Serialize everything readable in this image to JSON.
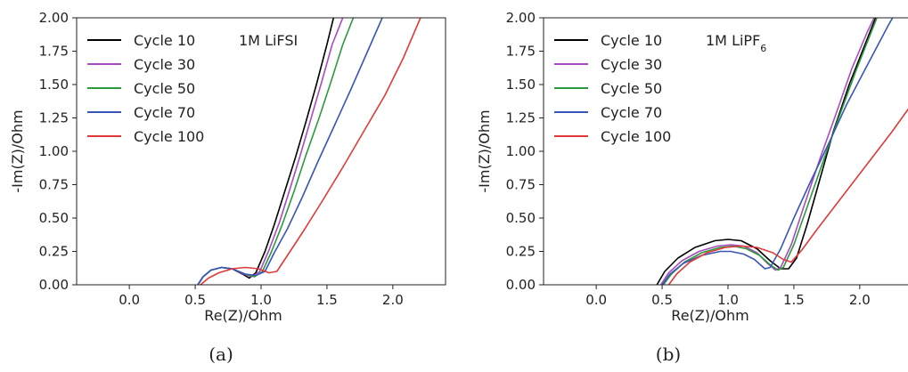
{
  "chart_data": [
    {
      "type": "line",
      "panel_label": "(a)",
      "annotation": "1M LiFSI",
      "xlabel": "Re(Z)/Ohm",
      "ylabel": "-Im(Z)/Ohm",
      "xlim": [
        -0.4,
        2.4
      ],
      "ylim": [
        0,
        2.0
      ],
      "xticks": [
        "0.0",
        "0.5",
        "1.0",
        "1.5",
        "2.0"
      ],
      "yticks": [
        "0.00",
        "0.25",
        "0.50",
        "0.75",
        "1.00",
        "1.25",
        "1.50",
        "1.75",
        "2.00"
      ],
      "legend": "top-left",
      "grid": false,
      "series": [
        {
          "name": "Cycle 10",
          "color": "#000000",
          "points": [
            [
              0.52,
              0.0
            ],
            [
              0.56,
              0.06
            ],
            [
              0.62,
              0.11
            ],
            [
              0.7,
              0.13
            ],
            [
              0.78,
              0.12
            ],
            [
              0.86,
              0.08
            ],
            [
              0.91,
              0.05
            ],
            [
              0.96,
              0.09
            ],
            [
              1.03,
              0.25
            ],
            [
              1.1,
              0.45
            ],
            [
              1.18,
              0.7
            ],
            [
              1.26,
              0.95
            ],
            [
              1.34,
              1.22
            ],
            [
              1.42,
              1.5
            ],
            [
              1.5,
              1.8
            ],
            [
              1.55,
              2.0
            ]
          ]
        },
        {
          "name": "Cycle 30",
          "color": "#a94bc0",
          "points": [
            [
              0.52,
              0.0
            ],
            [
              0.56,
              0.06
            ],
            [
              0.62,
              0.11
            ],
            [
              0.7,
              0.13
            ],
            [
              0.78,
              0.12
            ],
            [
              0.87,
              0.08
            ],
            [
              0.93,
              0.06
            ],
            [
              0.99,
              0.1
            ],
            [
              1.06,
              0.26
            ],
            [
              1.14,
              0.47
            ],
            [
              1.22,
              0.72
            ],
            [
              1.3,
              0.98
            ],
            [
              1.38,
              1.25
            ],
            [
              1.46,
              1.52
            ],
            [
              1.54,
              1.8
            ],
            [
              1.62,
              2.0
            ]
          ]
        },
        {
          "name": "Cycle 50",
          "color": "#2a9a3c",
          "points": [
            [
              0.52,
              0.0
            ],
            [
              0.56,
              0.06
            ],
            [
              0.62,
              0.11
            ],
            [
              0.7,
              0.13
            ],
            [
              0.78,
              0.12
            ],
            [
              0.88,
              0.08
            ],
            [
              0.95,
              0.06
            ],
            [
              1.01,
              0.1
            ],
            [
              1.08,
              0.25
            ],
            [
              1.16,
              0.45
            ],
            [
              1.25,
              0.7
            ],
            [
              1.34,
              0.97
            ],
            [
              1.44,
              1.25
            ],
            [
              1.53,
              1.52
            ],
            [
              1.62,
              1.8
            ],
            [
              1.7,
              2.0
            ]
          ]
        },
        {
          "name": "Cycle 70",
          "color": "#3a55b8",
          "points": [
            [
              0.52,
              0.0
            ],
            [
              0.56,
              0.06
            ],
            [
              0.62,
              0.11
            ],
            [
              0.7,
              0.13
            ],
            [
              0.78,
              0.12
            ],
            [
              0.88,
              0.08
            ],
            [
              0.96,
              0.07
            ],
            [
              1.03,
              0.1
            ],
            [
              1.1,
              0.24
            ],
            [
              1.2,
              0.42
            ],
            [
              1.31,
              0.65
            ],
            [
              1.43,
              0.92
            ],
            [
              1.56,
              1.2
            ],
            [
              1.68,
              1.46
            ],
            [
              1.8,
              1.73
            ],
            [
              1.92,
              2.0
            ]
          ]
        },
        {
          "name": "Cycle 100",
          "color": "#e03a3a",
          "points": [
            [
              0.54,
              0.0
            ],
            [
              0.6,
              0.05
            ],
            [
              0.68,
              0.09
            ],
            [
              0.78,
              0.12
            ],
            [
              0.88,
              0.13
            ],
            [
              0.98,
              0.12
            ],
            [
              1.06,
              0.09
            ],
            [
              1.12,
              0.1
            ],
            [
              1.2,
              0.22
            ],
            [
              1.32,
              0.4
            ],
            [
              1.46,
              0.62
            ],
            [
              1.62,
              0.88
            ],
            [
              1.78,
              1.15
            ],
            [
              1.94,
              1.42
            ],
            [
              2.08,
              1.7
            ],
            [
              2.21,
              2.0
            ]
          ]
        }
      ]
    },
    {
      "type": "line",
      "panel_label": "(b)",
      "annotation": "1M LiPF",
      "annotation_sub": "6",
      "xlabel": "Re(Z)/Ohm",
      "ylabel": "-Im(Z)/Ohm",
      "xlim": [
        -0.4,
        2.4
      ],
      "ylim": [
        0,
        2.0
      ],
      "xticks": [
        "0.0",
        "0.5",
        "1.0",
        "1.5",
        "2.0"
      ],
      "yticks": [
        "0.00",
        "0.25",
        "0.50",
        "0.75",
        "1.00",
        "1.25",
        "1.50",
        "1.75",
        "2.00"
      ],
      "legend": "top-left",
      "grid": false,
      "series": [
        {
          "name": "Cycle 10",
          "color": "#000000",
          "points": [
            [
              0.46,
              0.0
            ],
            [
              0.52,
              0.1
            ],
            [
              0.62,
              0.2
            ],
            [
              0.75,
              0.28
            ],
            [
              0.9,
              0.33
            ],
            [
              1.0,
              0.34
            ],
            [
              1.1,
              0.33
            ],
            [
              1.22,
              0.27
            ],
            [
              1.32,
              0.18
            ],
            [
              1.4,
              0.12
            ],
            [
              1.46,
              0.12
            ],
            [
              1.52,
              0.2
            ],
            [
              1.6,
              0.45
            ],
            [
              1.7,
              0.8
            ],
            [
              1.8,
              1.15
            ],
            [
              1.92,
              1.5
            ],
            [
              2.06,
              1.85
            ],
            [
              2.12,
              2.0
            ]
          ]
        },
        {
          "name": "Cycle 30",
          "color": "#a94bc0",
          "points": [
            [
              0.49,
              0.0
            ],
            [
              0.55,
              0.09
            ],
            [
              0.65,
              0.18
            ],
            [
              0.78,
              0.25
            ],
            [
              0.92,
              0.29
            ],
            [
              1.02,
              0.3
            ],
            [
              1.12,
              0.29
            ],
            [
              1.22,
              0.24
            ],
            [
              1.3,
              0.16
            ],
            [
              1.36,
              0.11
            ],
            [
              1.4,
              0.13
            ],
            [
              1.48,
              0.3
            ],
            [
              1.58,
              0.6
            ],
            [
              1.7,
              0.95
            ],
            [
              1.82,
              1.28
            ],
            [
              1.94,
              1.62
            ],
            [
              2.06,
              1.9
            ],
            [
              2.11,
              2.0
            ]
          ]
        },
        {
          "name": "Cycle 50",
          "color": "#2a9a3c",
          "points": [
            [
              0.51,
              0.0
            ],
            [
              0.57,
              0.08
            ],
            [
              0.67,
              0.17
            ],
            [
              0.8,
              0.24
            ],
            [
              0.94,
              0.28
            ],
            [
              1.04,
              0.29
            ],
            [
              1.14,
              0.27
            ],
            [
              1.24,
              0.22
            ],
            [
              1.32,
              0.15
            ],
            [
              1.38,
              0.11
            ],
            [
              1.42,
              0.13
            ],
            [
              1.5,
              0.3
            ],
            [
              1.6,
              0.58
            ],
            [
              1.72,
              0.92
            ],
            [
              1.84,
              1.25
            ],
            [
              1.97,
              1.6
            ],
            [
              2.09,
              1.9
            ],
            [
              2.13,
              2.0
            ]
          ]
        },
        {
          "name": "Cycle 70",
          "color": "#3a55b8",
          "points": [
            [
              0.5,
              0.0
            ],
            [
              0.56,
              0.08
            ],
            [
              0.66,
              0.16
            ],
            [
              0.8,
              0.22
            ],
            [
              0.94,
              0.25
            ],
            [
              1.02,
              0.25
            ],
            [
              1.12,
              0.23
            ],
            [
              1.2,
              0.19
            ],
            [
              1.28,
              0.12
            ],
            [
              1.32,
              0.13
            ],
            [
              1.4,
              0.27
            ],
            [
              1.5,
              0.5
            ],
            [
              1.62,
              0.76
            ],
            [
              1.76,
              1.05
            ],
            [
              1.9,
              1.35
            ],
            [
              2.06,
              1.65
            ],
            [
              2.22,
              1.95
            ],
            [
              2.25,
              2.0
            ]
          ]
        },
        {
          "name": "Cycle 100",
          "color": "#e03a3a",
          "points": [
            [
              0.55,
              0.0
            ],
            [
              0.61,
              0.08
            ],
            [
              0.71,
              0.17
            ],
            [
              0.84,
              0.24
            ],
            [
              0.98,
              0.28
            ],
            [
              1.1,
              0.29
            ],
            [
              1.22,
              0.28
            ],
            [
              1.34,
              0.24
            ],
            [
              1.42,
              0.19
            ],
            [
              1.48,
              0.17
            ],
            [
              1.56,
              0.26
            ],
            [
              1.68,
              0.42
            ],
            [
              1.82,
              0.6
            ],
            [
              1.96,
              0.78
            ],
            [
              2.1,
              0.96
            ],
            [
              2.24,
              1.14
            ],
            [
              2.4,
              1.36
            ]
          ]
        }
      ]
    }
  ]
}
